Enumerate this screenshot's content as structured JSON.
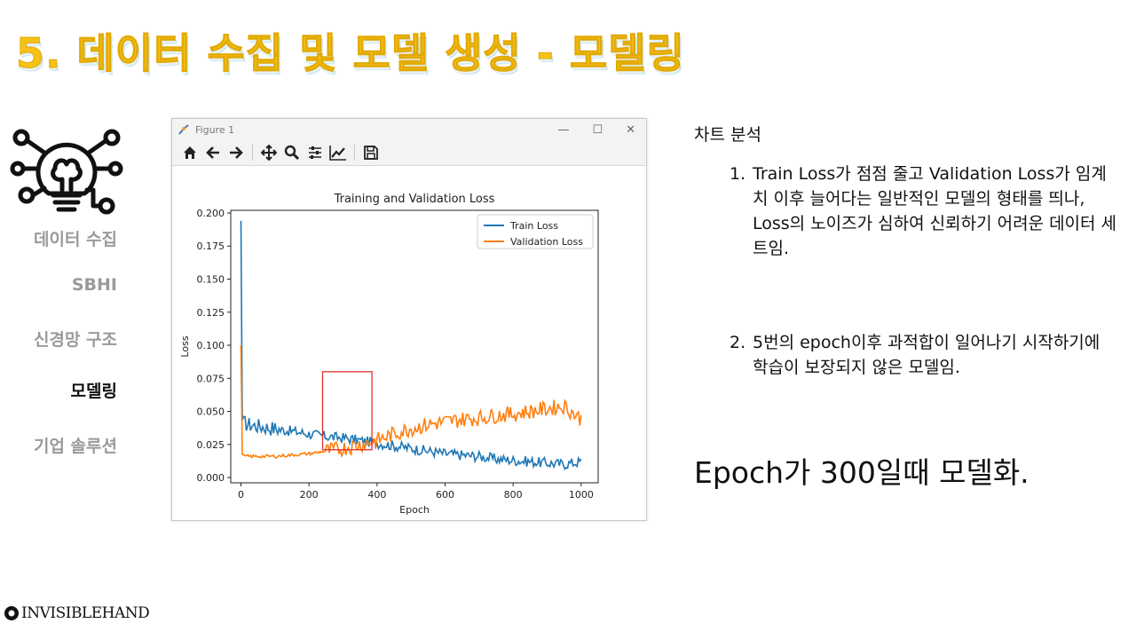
{
  "slide": {
    "title": "5. 데이터 수집 및 모델 생성 - 모델링",
    "nav": [
      {
        "label": "데이터 수집",
        "active": false
      },
      {
        "label": "SBHI",
        "active": false
      },
      {
        "label": "신경망 구조",
        "active": false
      },
      {
        "label": "모델링",
        "active": true
      },
      {
        "label": "기업 솔루션",
        "active": false
      }
    ],
    "logo_text": "INVISIBLEHAND"
  },
  "window": {
    "title": "Figure 1",
    "controls": {
      "minimize": "—",
      "maximize": "☐",
      "close": "✕"
    },
    "toolbar_icons": [
      "home-icon",
      "back-arrow-icon",
      "forward-arrow-icon",
      "pan-icon",
      "zoom-icon",
      "configure-icon",
      "edit-axes-icon",
      "save-icon"
    ]
  },
  "analysis": {
    "heading": "차트 분석",
    "items": [
      {
        "num": "1.",
        "text": "Train Loss가 점점 줄고 Validation Loss가 임계치 이후 늘어다는 일반적인 모델의 형태를 띄나, Loss의 노이즈가 심하여 신뢰하기 어려운 데이터 세트임."
      },
      {
        "num": "2.",
        "text": "5번의 epoch이후 과적합이 일어나기 시작하기에 학습이 보장되지 않은 모델임."
      }
    ],
    "conclusion": "Epoch가 300일때 모델화."
  },
  "chart_data": {
    "type": "line",
    "title": "Training and Validation Loss",
    "xlabel": "Epoch",
    "ylabel": "Loss",
    "xlim": [
      -30,
      1050
    ],
    "ylim": [
      -0.004,
      0.202
    ],
    "xticks": [
      0,
      200,
      400,
      600,
      800,
      1000
    ],
    "yticks": [
      0.0,
      0.025,
      0.05,
      0.075,
      0.1,
      0.125,
      0.15,
      0.175,
      0.2
    ],
    "ytick_labels": [
      "0.000",
      "0.025",
      "0.050",
      "0.075",
      "0.100",
      "0.125",
      "0.150",
      "0.175",
      "0.200"
    ],
    "grid": false,
    "legend": "top-right",
    "highlight_box": {
      "x": [
        240,
        385
      ],
      "y": [
        0.021,
        0.08
      ]
    },
    "series": [
      {
        "name": "Train Loss",
        "color": "#1f77b4",
        "x": [
          0,
          1,
          3,
          5,
          10,
          25,
          50,
          75,
          100,
          150,
          200,
          250,
          300,
          350,
          400,
          450,
          500,
          550,
          600,
          650,
          700,
          750,
          800,
          850,
          900,
          950,
          1000
        ],
        "y": [
          0.194,
          0.06,
          0.045,
          0.042,
          0.041,
          0.04,
          0.039,
          0.038,
          0.037,
          0.035,
          0.033,
          0.031,
          0.03,
          0.028,
          0.026,
          0.024,
          0.022,
          0.02,
          0.018,
          0.017,
          0.016,
          0.014,
          0.013,
          0.012,
          0.011,
          0.01,
          0.012
        ]
      },
      {
        "name": "Validation Loss",
        "color": "#ff7f0e",
        "x": [
          0,
          1,
          3,
          5,
          10,
          25,
          50,
          100,
          150,
          200,
          250,
          300,
          350,
          400,
          450,
          500,
          550,
          600,
          650,
          700,
          750,
          800,
          850,
          900,
          950,
          1000
        ],
        "y": [
          0.1,
          0.03,
          0.018,
          0.017,
          0.016,
          0.016,
          0.016,
          0.016,
          0.017,
          0.018,
          0.02,
          0.022,
          0.025,
          0.028,
          0.033,
          0.037,
          0.04,
          0.042,
          0.044,
          0.045,
          0.047,
          0.048,
          0.05,
          0.052,
          0.054,
          0.044
        ]
      }
    ]
  }
}
